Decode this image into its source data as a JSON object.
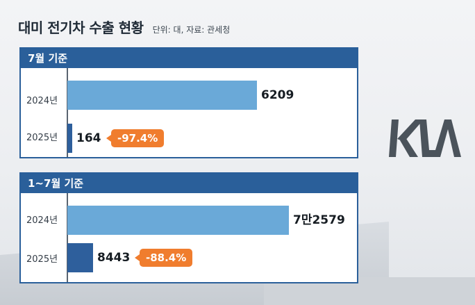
{
  "header": {
    "title": "대미 전기차 수출 현황",
    "subtitle": "단위: 대, 자료: 관세청"
  },
  "logo_text": "KIA",
  "colors": {
    "panel_header": "#2a5f9a",
    "bar_2024": "#6aa9d8",
    "bar_2025": "#2e5f9c",
    "badge": "#f07d2e"
  },
  "chart_data": [
    {
      "type": "bar",
      "orientation": "horizontal",
      "title": "7월 기준",
      "categories": [
        "2024년",
        "2025년"
      ],
      "values": [
        6209,
        164
      ],
      "value_labels": [
        "6209",
        "164"
      ],
      "change_label": "-97.4%",
      "xlim": [
        0,
        9000
      ]
    },
    {
      "type": "bar",
      "orientation": "horizontal",
      "title": "1~7월 기준",
      "categories": [
        "2024년",
        "2025년"
      ],
      "values": [
        72579,
        8443
      ],
      "value_labels": [
        "7만2579",
        "8443"
      ],
      "change_label": "-88.4%",
      "xlim": [
        0,
        90000
      ]
    }
  ]
}
